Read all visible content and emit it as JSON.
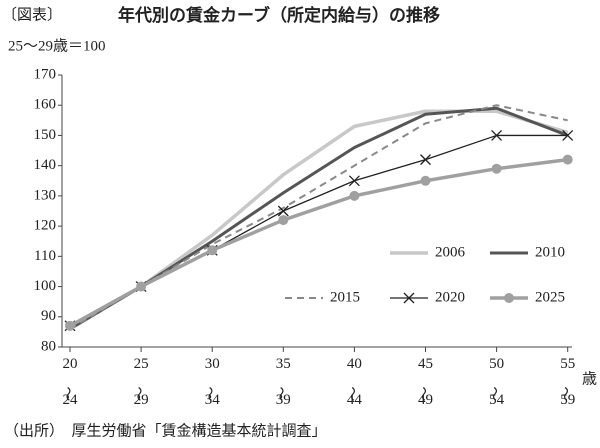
{
  "chart_data": {
    "type": "line",
    "label": "〔図表〕",
    "title": "年代別の賃金カーブ（所定内給与）の推移",
    "subtitle": "25～29歳＝100",
    "source": "（出所）　厚生労働省「賃金構造基本統計調査」",
    "x_unit": "歳",
    "categories": [
      "20～24",
      "25～29",
      "30～34",
      "35～39",
      "40～44",
      "45～49",
      "50～54",
      "55～59"
    ],
    "ylim": [
      80,
      170
    ],
    "yticks": [
      80,
      90,
      100,
      110,
      120,
      130,
      140,
      150,
      160,
      170
    ],
    "series": [
      {
        "name": "2006",
        "color": "#c8c8c8",
        "linewidth": 3.5,
        "values": [
          86,
          100,
          117,
          137,
          153,
          158,
          158,
          151
        ]
      },
      {
        "name": "2010",
        "color": "#555555",
        "linewidth": 3,
        "values": [
          86,
          100,
          115,
          131,
          146,
          157,
          159,
          150
        ]
      },
      {
        "name": "2015",
        "color": "#888888",
        "linewidth": 2,
        "linestyle": "dashed",
        "values": [
          86,
          100,
          114,
          126,
          140,
          154,
          160,
          155
        ]
      },
      {
        "name": "2020",
        "color": "#222222",
        "linewidth": 1.3,
        "marker": "x",
        "values": [
          87,
          100,
          112,
          125,
          135,
          142,
          150,
          150
        ]
      },
      {
        "name": "2025",
        "color": "#a0a0a0",
        "linewidth": 3.5,
        "marker": "circle",
        "values": [
          87,
          100,
          112,
          122,
          130,
          135,
          139,
          142
        ]
      }
    ]
  }
}
